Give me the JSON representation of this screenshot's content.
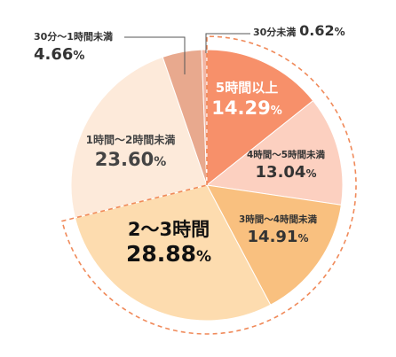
{
  "chart_data": {
    "type": "pie",
    "start_angle_deg": 0,
    "direction": "clockwise",
    "slices": [
      {
        "category": "5時間以上",
        "value": 14.29,
        "display": "14.29",
        "color": "#f7906a",
        "text_color": "#ffffff"
      },
      {
        "category": "4時間〜5時間未満",
        "value": 13.04,
        "display": "13.04",
        "color": "#fcd0c0",
        "text_color": "#333333"
      },
      {
        "category": "3時間〜4時間未満",
        "value": 14.91,
        "display": "14.91",
        "color": "#f9c07f",
        "text_color": "#333333"
      },
      {
        "category": "2〜3時間",
        "value": 28.88,
        "display": "28.88",
        "color": "#fddcaf",
        "text_color": "#111111"
      },
      {
        "category": "1時間〜2時間未満",
        "value": 23.6,
        "display": "23.60",
        "color": "#fdeada",
        "text_color": "#444444"
      },
      {
        "category": "30分〜1時間未満",
        "value": 4.66,
        "display": "4.66",
        "color": "#e8a98e",
        "text_color": "#333333"
      },
      {
        "category": "30分未満",
        "value": 0.62,
        "display": "0.62",
        "color": "#f3b6a4",
        "text_color": "#333333"
      }
    ],
    "unit": "%",
    "emphasis": "dashed outline around 2〜3時間 and above"
  }
}
